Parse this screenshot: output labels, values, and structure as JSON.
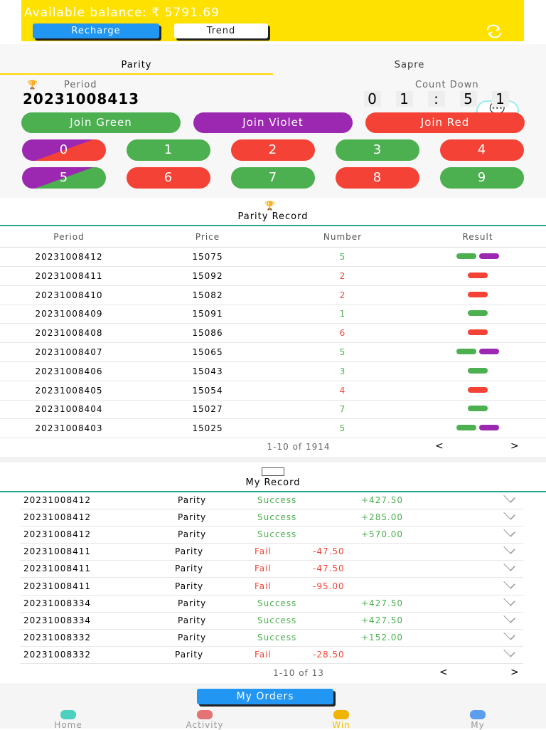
{
  "header": {
    "balance": "Available balance: ₹ 5791.69",
    "recharge": "Recharge",
    "trend": "Trend"
  },
  "tabs": [
    "Parity",
    "Sapre"
  ],
  "period": {
    "label": "Period",
    "value": "20231008413",
    "countdown_label": "Count Down",
    "countdown": [
      "0",
      "1",
      ":",
      "5",
      "1"
    ]
  },
  "join": [
    "Join Green",
    "Join Violet",
    "Join Red"
  ],
  "numbers": [
    "0",
    "1",
    "2",
    "3",
    "4",
    "5",
    "6",
    "7",
    "8",
    "9"
  ],
  "parity_record": {
    "title": "Parity Record",
    "columns": [
      "Period",
      "Price",
      "Number",
      "Result"
    ],
    "rows": [
      {
        "period": "20231008412",
        "price": "15075",
        "number": "5",
        "result": [
          "green",
          "violet"
        ]
      },
      {
        "period": "20231008411",
        "price": "15092",
        "number": "2",
        "result": [
          "red"
        ]
      },
      {
        "period": "20231008410",
        "price": "15082",
        "number": "2",
        "result": [
          "red"
        ]
      },
      {
        "period": "20231008409",
        "price": "15091",
        "number": "1",
        "result": [
          "green"
        ]
      },
      {
        "period": "20231008408",
        "price": "15086",
        "number": "6",
        "result": [
          "red"
        ]
      },
      {
        "period": "20231008407",
        "price": "15065",
        "number": "5",
        "result": [
          "green",
          "violet"
        ]
      },
      {
        "period": "20231008406",
        "price": "15043",
        "number": "3",
        "result": [
          "green"
        ]
      },
      {
        "period": "20231008405",
        "price": "15054",
        "number": "4",
        "result": [
          "red"
        ]
      },
      {
        "period": "20231008404",
        "price": "15027",
        "number": "7",
        "result": [
          "green"
        ]
      },
      {
        "period": "20231008403",
        "price": "15025",
        "number": "5",
        "result": [
          "green",
          "violet"
        ]
      }
    ],
    "pagination": "1-10 of 1914",
    "prev": "<",
    "next": ">"
  },
  "my_record": {
    "title": "My Record",
    "rows": [
      [
        "20231008412",
        "Parity",
        "Success",
        "+427.50"
      ],
      [
        "20231008412",
        "Parity",
        "Success",
        "+285.00"
      ],
      [
        "20231008412",
        "Parity",
        "Success",
        "+570.00"
      ],
      [
        "20231008411",
        "Parity",
        "Fail",
        "-47.50"
      ],
      [
        "20231008411",
        "Parity",
        "Fail",
        "-47.50"
      ],
      [
        "20231008411",
        "Parity",
        "Fail",
        "-95.00"
      ],
      [
        "20231008334",
        "Parity",
        "Success",
        "+427.50"
      ],
      [
        "20231008334",
        "Parity",
        "Success",
        "+427.50"
      ],
      [
        "20231008332",
        "Parity",
        "Success",
        "+152.00"
      ],
      [
        "20231008332",
        "Parity",
        "Fail",
        "-28.50"
      ]
    ],
    "pagination": "1-10 of 13",
    "prev": "<",
    "next": ">"
  },
  "my_orders": "My Orders",
  "nav": [
    "Home",
    "Activity",
    "Win",
    "My"
  ]
}
